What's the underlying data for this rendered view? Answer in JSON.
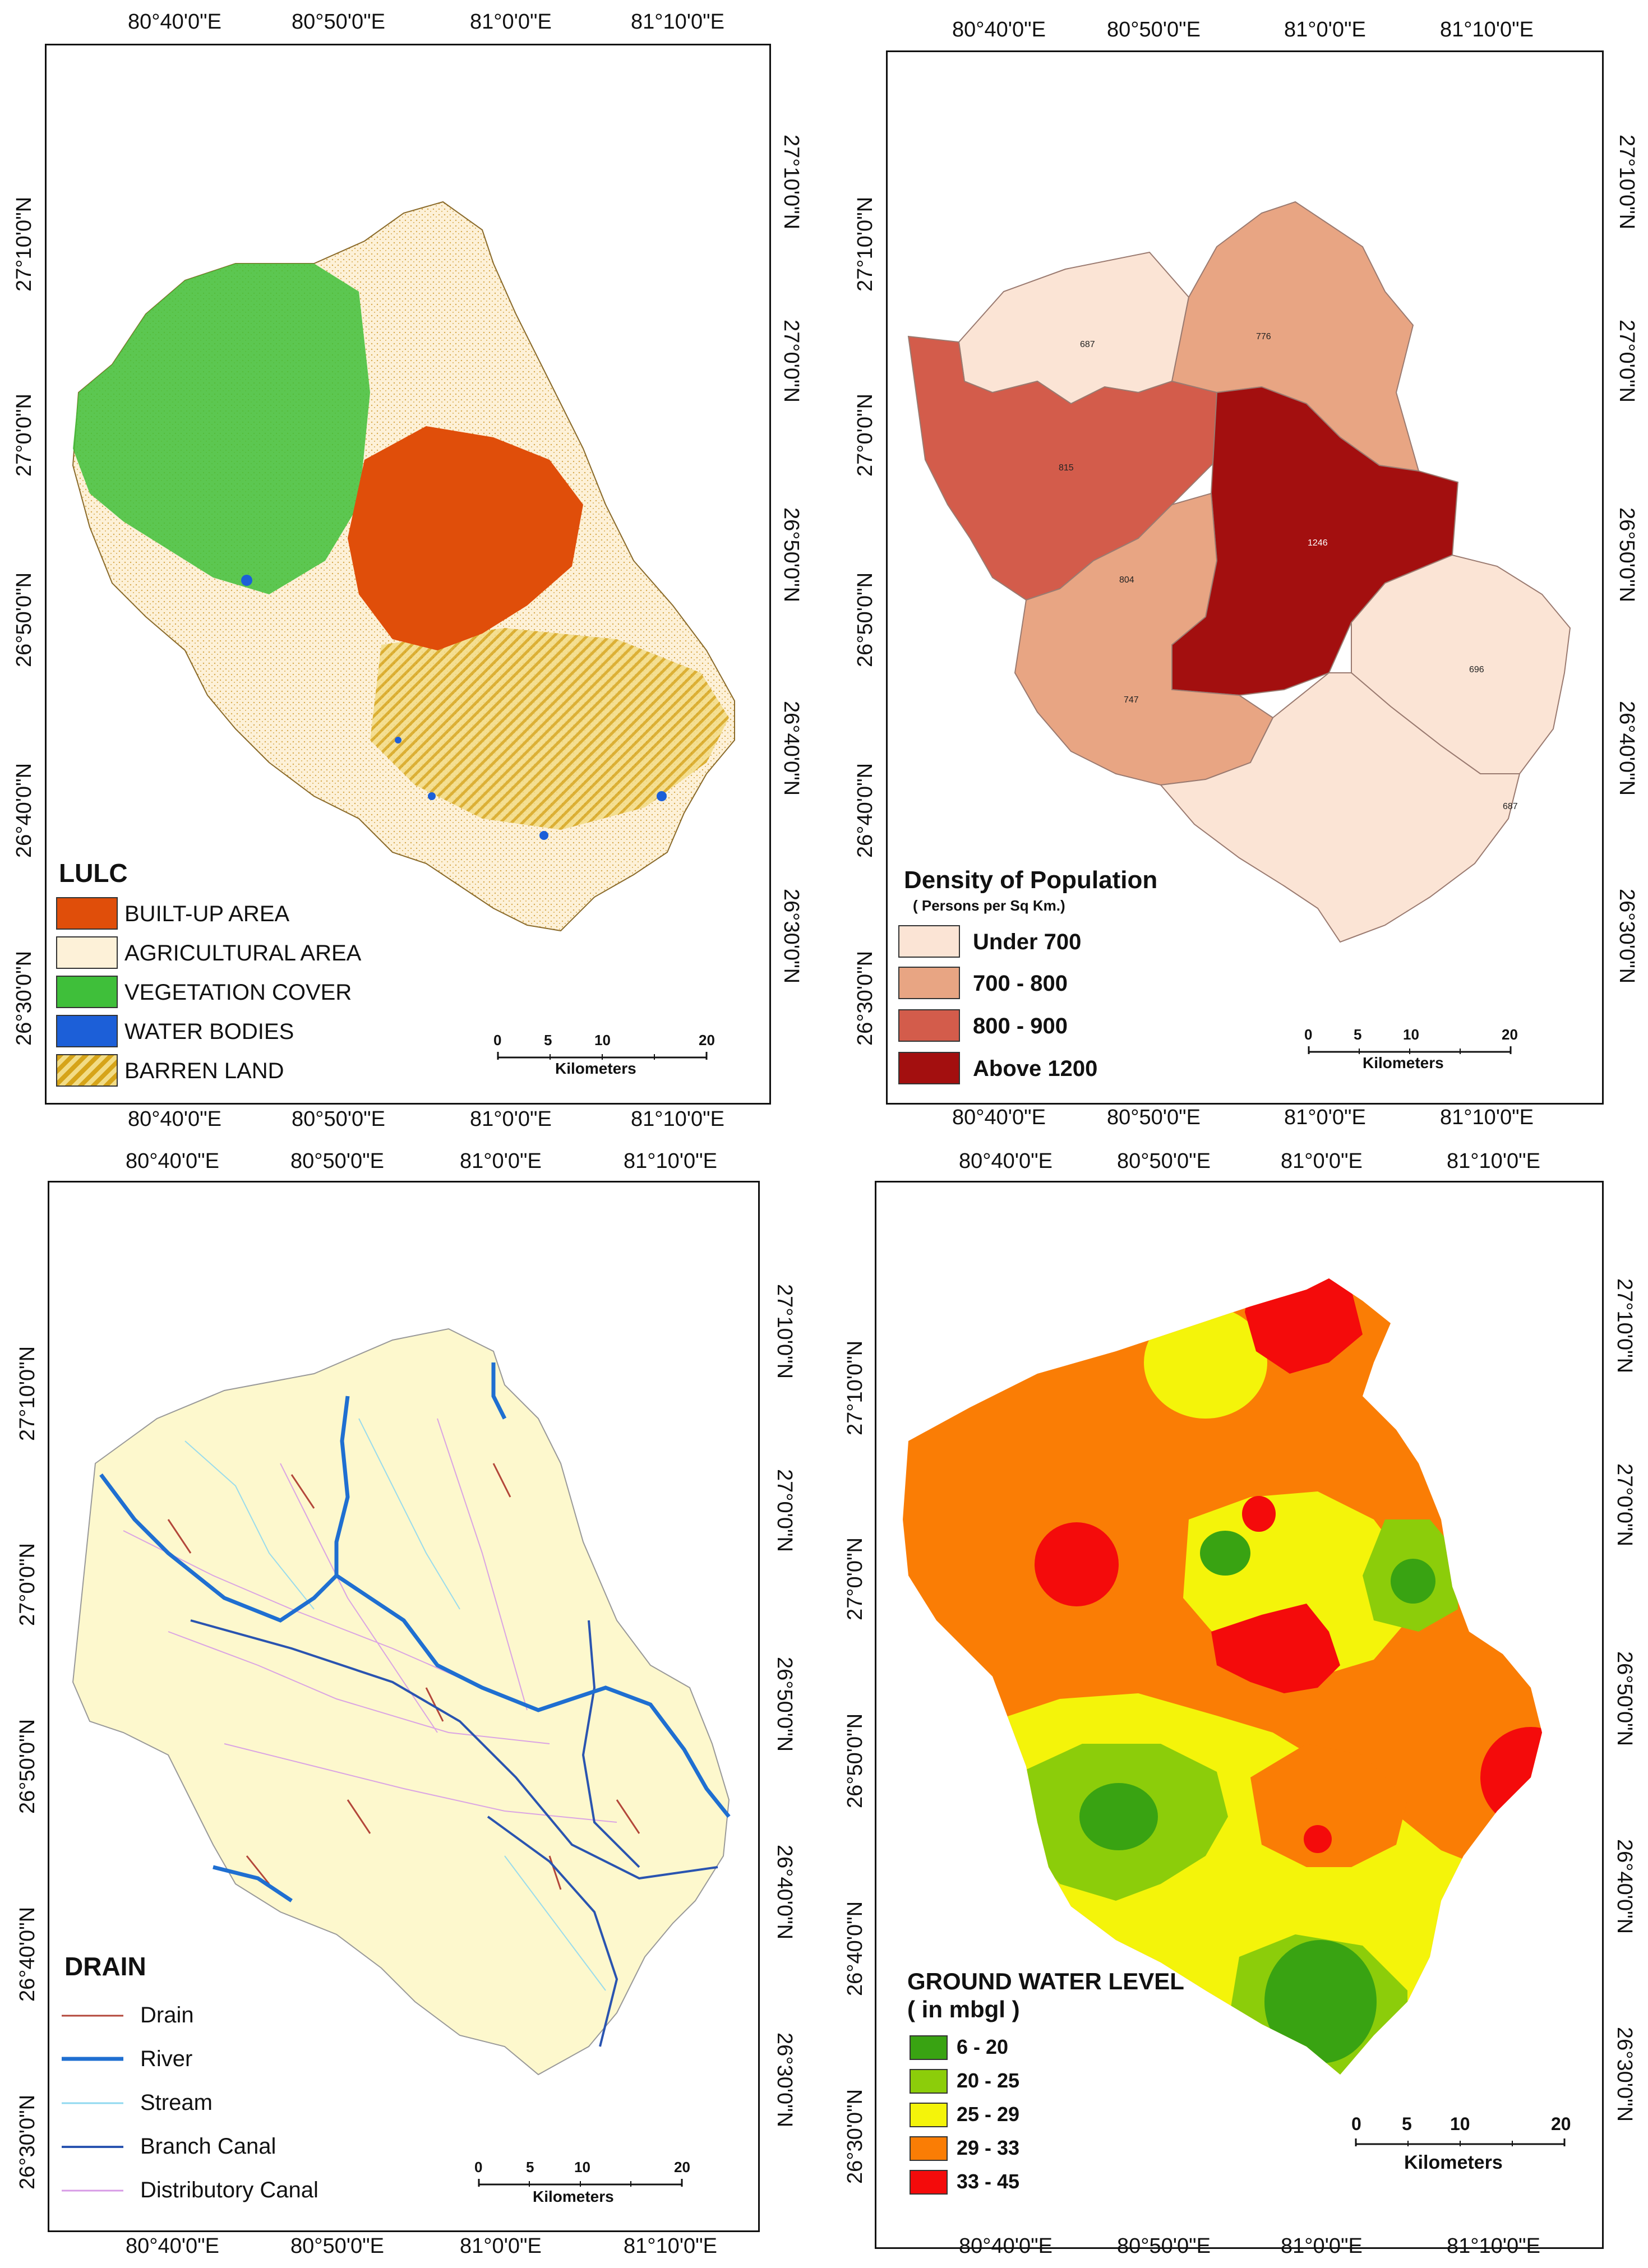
{
  "longitude_ticks": [
    "80°40'0\"E",
    "80°50'0\"E",
    "81°0'0\"E",
    "81°10'0\"E"
  ],
  "latitude_ticks": [
    "27°10'0\"N",
    "27°0'0\"N",
    "26°50'0\"N",
    "26°40'0\"N",
    "26°30'0\"N"
  ],
  "scale": {
    "ticks": [
      "0",
      "5",
      "10",
      "20"
    ],
    "unit": "Kilometers"
  },
  "lulc": {
    "title": "LULC",
    "items": [
      {
        "label": "BUILT-UP AREA",
        "color": "#e04e0a"
      },
      {
        "label": "AGRICULTURAL AREA",
        "color": "#fdf1d8"
      },
      {
        "label": "VEGETATION COVER",
        "color": "#3fbf3a"
      },
      {
        "label": "WATER BODIES",
        "color": "#1c5fd8"
      },
      {
        "label": "BARREN LAND",
        "color": "#e2bb3c"
      }
    ]
  },
  "density": {
    "title": "Density of Population",
    "subtitle": "( Persons per Sq Km.)",
    "items": [
      {
        "label": "Under 700",
        "color": "#fbe4d5"
      },
      {
        "label": "700 - 800",
        "color": "#e8a583"
      },
      {
        "label": "800 - 900",
        "color": "#d35c4b"
      },
      {
        "label": "Above 1200",
        "color": "#a30f0f"
      }
    ],
    "region_values": [
      "687",
      "776",
      "815",
      "804",
      "1246",
      "747",
      "696",
      "687"
    ]
  },
  "drain": {
    "title": "DRAIN",
    "items": [
      {
        "label": "Drain",
        "color": "#b3473a"
      },
      {
        "label": "River",
        "color": "#1f6fd1"
      },
      {
        "label": "Stream",
        "color": "#8fd8f0"
      },
      {
        "label": "Branch Canal",
        "color": "#2a54b0"
      },
      {
        "label": "Distributory Canal",
        "color": "#d79be6"
      }
    ]
  },
  "groundwater": {
    "title": "GROUND WATER LEVEL",
    "subtitle": "( in mbgl )",
    "items": [
      {
        "label": "6 - 20",
        "color": "#39a312"
      },
      {
        "label": "20 - 25",
        "color": "#8ccd0a"
      },
      {
        "label": "25 - 29",
        "color": "#f4f40a"
      },
      {
        "label": "29 - 33",
        "color": "#fa7d05"
      },
      {
        "label": "33 - 45",
        "color": "#f40b0b"
      }
    ]
  }
}
